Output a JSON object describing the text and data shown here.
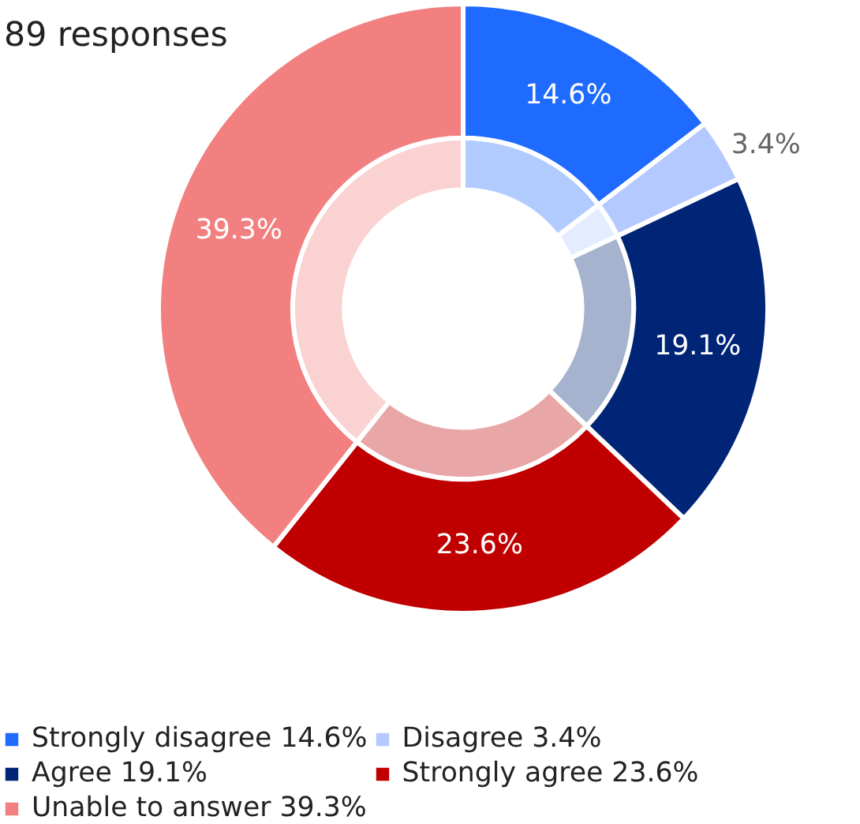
{
  "chart_data": {
    "type": "donut",
    "title": "89 responses",
    "categories": [
      "Strongly disagree 14.6%",
      "Disagree 3.4%",
      "Agree 19.1%",
      "Strongly agree 23.6%",
      "Unable to answer 39.3%"
    ],
    "series": [
      {
        "values": [
          14.6,
          3.4,
          19.1,
          23.6,
          39.3
        ],
        "colors": [
          "#b1cbff",
          "#e4ecff",
          "#a6b3cf",
          "#e9a6a6",
          "#fad2d2"
        ]
      },
      {
        "values": [
          14.6,
          3.4,
          19.1,
          23.6,
          39.3
        ],
        "colors": [
          "#1f6bff",
          "#b3c9ff",
          "#002577",
          "#c00000",
          "#f28080"
        ],
        "value_labels": [
          "14.6%",
          "3.4%",
          "19.1%",
          "23.6%",
          "39.3%"
        ]
      }
    ],
    "legend": "bottom"
  }
}
